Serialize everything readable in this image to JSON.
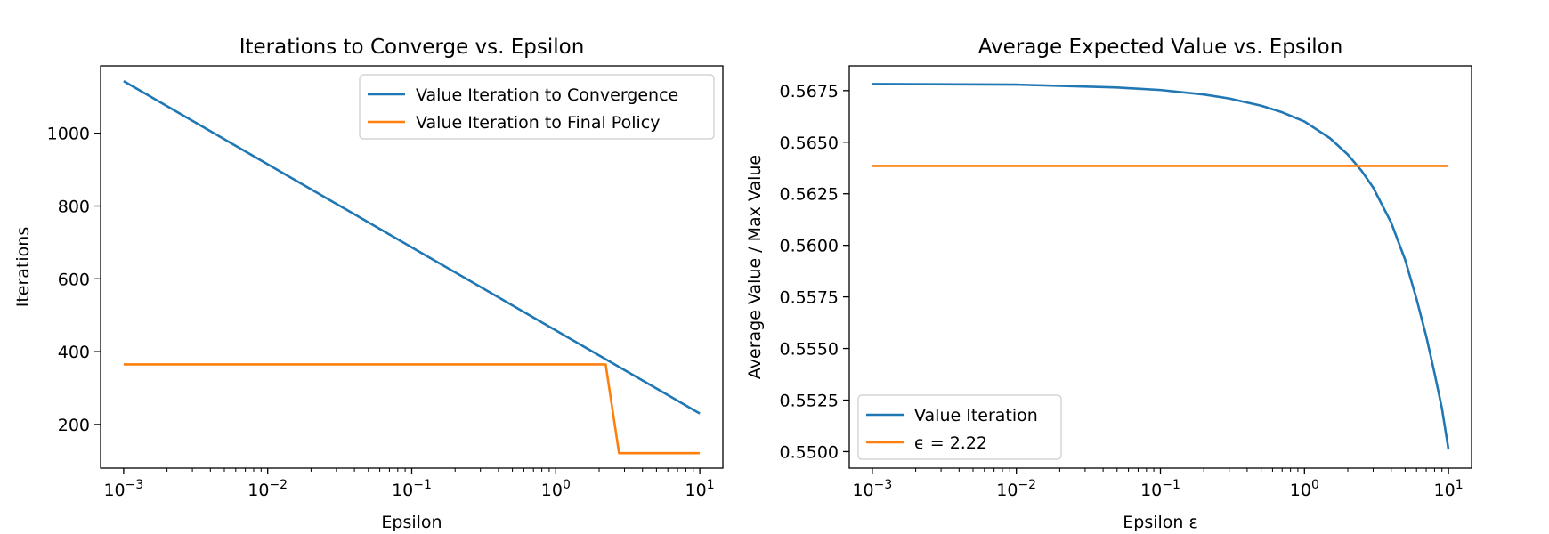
{
  "chart_data": [
    {
      "type": "line",
      "title": "Iterations to Converge vs. Epsilon",
      "xlabel": "Epsilon",
      "ylabel": "Iterations",
      "x_scale": "log",
      "xlim": [
        0.001,
        10
      ],
      "ylim": [
        80,
        1185
      ],
      "x_ticks": [
        {
          "value": 0.001,
          "label": "10−3"
        },
        {
          "value": 0.01,
          "label": "10−2"
        },
        {
          "value": 0.1,
          "label": "10−1"
        },
        {
          "value": 1,
          "label": "100"
        },
        {
          "value": 10,
          "label": "101"
        }
      ],
      "y_ticks": [
        200,
        400,
        600,
        800,
        1000
      ],
      "legend_position": "top-right",
      "grid": false,
      "series": [
        {
          "name": "Value Iteration to Convergence",
          "color": "#1f77b4",
          "x": [
            0.001,
            10
          ],
          "y": [
            1143,
            230
          ]
        },
        {
          "name": "Value Iteration to Final Policy",
          "color": "#ff7f0e",
          "x": [
            0.001,
            2.22,
            2.75,
            10
          ],
          "y": [
            365,
            365,
            121,
            121
          ]
        }
      ]
    },
    {
      "type": "line",
      "title": "Average Expected Value vs. Epsilon",
      "xlabel": "Epsilon ε",
      "ylabel": "Average Value / Max Value",
      "x_scale": "log",
      "xlim": [
        0.001,
        10
      ],
      "ylim": [
        0.5492,
        0.5687
      ],
      "x_ticks": [
        {
          "value": 0.001,
          "label": "10−3"
        },
        {
          "value": 0.01,
          "label": "10−2"
        },
        {
          "value": 0.1,
          "label": "10−1"
        },
        {
          "value": 1,
          "label": "100"
        },
        {
          "value": 10,
          "label": "101"
        }
      ],
      "y_ticks": [
        "0.5500",
        "0.5525",
        "0.5550",
        "0.5575",
        "0.5600",
        "0.5625",
        "0.5650",
        "0.5675"
      ],
      "legend_position": "bottom-left",
      "grid": false,
      "series": [
        {
          "name": "Value Iteration",
          "color": "#1f77b4",
          "x": [
            0.001,
            0.01,
            0.05,
            0.1,
            0.2,
            0.3,
            0.5,
            0.7,
            1.0,
            1.5,
            2.0,
            2.5,
            3.0,
            4.0,
            5.0,
            6.0,
            7.0,
            8.0,
            9.0,
            10.0
          ],
          "y": [
            0.56782,
            0.56779,
            0.56765,
            0.56753,
            0.56731,
            0.56712,
            0.56677,
            0.56645,
            0.566,
            0.5652,
            0.5644,
            0.5636,
            0.5628,
            0.5611,
            0.5593,
            0.5574,
            0.5556,
            0.5538,
            0.5521,
            0.5501
          ]
        },
        {
          "name": "ϵ = 2.22",
          "color": "#ff7f0e",
          "x": [
            0.001,
            10
          ],
          "y": [
            0.56385,
            0.56385
          ]
        }
      ]
    }
  ]
}
